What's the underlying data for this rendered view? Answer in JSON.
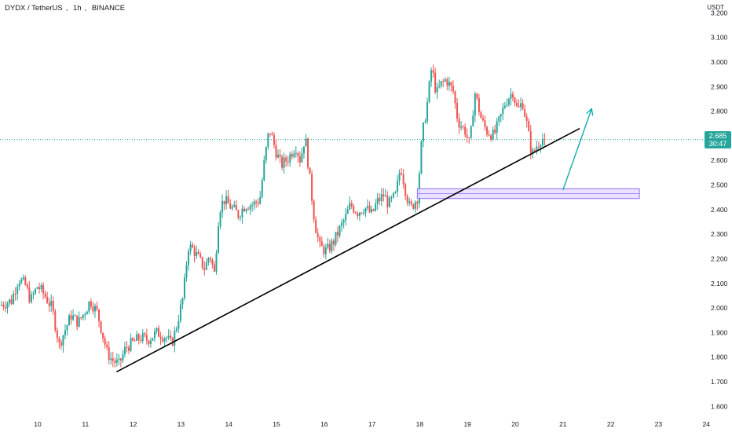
{
  "header": {
    "symbol": "DYDX / TetherUS",
    "timeframe": "1h",
    "exchange": "BINANCE"
  },
  "currency": "USDT",
  "colors": {
    "up": "#26a69a",
    "down": "#ef5350",
    "trendline": "#000000",
    "arrow": "#12a9b0",
    "zone_fill": "#e6ddff",
    "zone_stroke": "#8c6cf0",
    "price_line": "#26a69a",
    "price_tag": "#26a69a"
  },
  "price_tag": {
    "value": "2.685",
    "countdown": "30:47"
  },
  "chart_data": {
    "type": "candlestick",
    "ylim": [
      1.55,
      3.25
    ],
    "y_ticks": [
      "1.600",
      "1.700",
      "1.800",
      "1.900",
      "2.000",
      "2.100",
      "2.200",
      "2.300",
      "2.400",
      "2.500",
      "2.600",
      "2.700",
      "2.800",
      "2.900",
      "3.000",
      "3.100",
      "3.200"
    ],
    "x_ticks": [
      "10",
      "11",
      "12",
      "13",
      "14",
      "15",
      "16",
      "17",
      "18",
      "19",
      "20",
      "21",
      "22",
      "23",
      "24"
    ],
    "x_range_days": [
      9.2,
      24.1
    ],
    "current_price": 2.685,
    "close_path": [
      [
        9.2,
        2.01
      ],
      [
        9.45,
        2.03
      ],
      [
        9.6,
        2.12
      ],
      [
        9.75,
        2.09
      ],
      [
        9.85,
        2.03
      ],
      [
        10.0,
        2.09
      ],
      [
        10.15,
        2.05
      ],
      [
        10.3,
        2.0
      ],
      [
        10.45,
        1.85
      ],
      [
        10.55,
        1.9
      ],
      [
        10.7,
        1.97
      ],
      [
        10.85,
        1.94
      ],
      [
        11.0,
        1.99
      ],
      [
        11.1,
        2.03
      ],
      [
        11.25,
        1.98
      ],
      [
        11.45,
        1.82
      ],
      [
        11.55,
        1.79
      ],
      [
        11.7,
        1.77
      ],
      [
        11.85,
        1.84
      ],
      [
        12.0,
        1.86
      ],
      [
        12.15,
        1.88
      ],
      [
        12.3,
        1.87
      ],
      [
        12.5,
        1.9
      ],
      [
        12.7,
        1.88
      ],
      [
        12.8,
        1.85
      ],
      [
        12.9,
        1.92
      ],
      [
        13.05,
        2.05
      ],
      [
        13.15,
        2.25
      ],
      [
        13.25,
        2.24
      ],
      [
        13.4,
        2.19
      ],
      [
        13.5,
        2.16
      ],
      [
        13.6,
        2.22
      ],
      [
        13.7,
        2.14
      ],
      [
        13.8,
        2.4
      ],
      [
        13.9,
        2.44
      ],
      [
        14.05,
        2.41
      ],
      [
        14.2,
        2.38
      ],
      [
        14.35,
        2.42
      ],
      [
        14.5,
        2.42
      ],
      [
        14.65,
        2.44
      ],
      [
        14.75,
        2.6
      ],
      [
        14.85,
        2.73
      ],
      [
        15.0,
        2.63
      ],
      [
        15.1,
        2.58
      ],
      [
        15.25,
        2.61
      ],
      [
        15.4,
        2.66
      ],
      [
        15.5,
        2.6
      ],
      [
        15.6,
        2.7
      ],
      [
        15.7,
        2.52
      ],
      [
        15.8,
        2.35
      ],
      [
        15.9,
        2.25
      ],
      [
        16.05,
        2.23
      ],
      [
        16.2,
        2.27
      ],
      [
        16.3,
        2.31
      ],
      [
        16.45,
        2.37
      ],
      [
        16.55,
        2.42
      ],
      [
        16.7,
        2.39
      ],
      [
        16.85,
        2.41
      ],
      [
        17.0,
        2.38
      ],
      [
        17.1,
        2.43
      ],
      [
        17.25,
        2.46
      ],
      [
        17.35,
        2.42
      ],
      [
        17.5,
        2.46
      ],
      [
        17.6,
        2.58
      ],
      [
        17.7,
        2.48
      ],
      [
        17.8,
        2.4
      ],
      [
        17.95,
        2.45
      ],
      [
        18.05,
        2.7
      ],
      [
        18.15,
        2.82
      ],
      [
        18.25,
        2.98
      ],
      [
        18.35,
        2.87
      ],
      [
        18.45,
        2.91
      ],
      [
        18.55,
        2.93
      ],
      [
        18.7,
        2.88
      ],
      [
        18.8,
        2.76
      ],
      [
        18.95,
        2.72
      ],
      [
        19.05,
        2.66
      ],
      [
        19.15,
        2.88
      ],
      [
        19.3,
        2.76
      ],
      [
        19.4,
        2.72
      ],
      [
        19.55,
        2.7
      ],
      [
        19.7,
        2.78
      ],
      [
        19.8,
        2.84
      ],
      [
        19.95,
        2.88
      ],
      [
        20.05,
        2.8
      ],
      [
        20.15,
        2.84
      ],
      [
        20.25,
        2.74
      ],
      [
        20.35,
        2.62
      ],
      [
        20.45,
        2.66
      ],
      [
        20.55,
        2.69
      ],
      [
        20.62,
        2.685
      ]
    ],
    "trendline": {
      "from": [
        11.65,
        1.74
      ],
      "to": [
        21.35,
        2.73
      ]
    },
    "zone": {
      "x_from": 17.95,
      "x_to": 22.6,
      "y_low": 2.445,
      "y_high": 2.485
    },
    "arrow": {
      "from": [
        21.0,
        2.48
      ],
      "to": [
        21.6,
        2.81
      ]
    }
  }
}
